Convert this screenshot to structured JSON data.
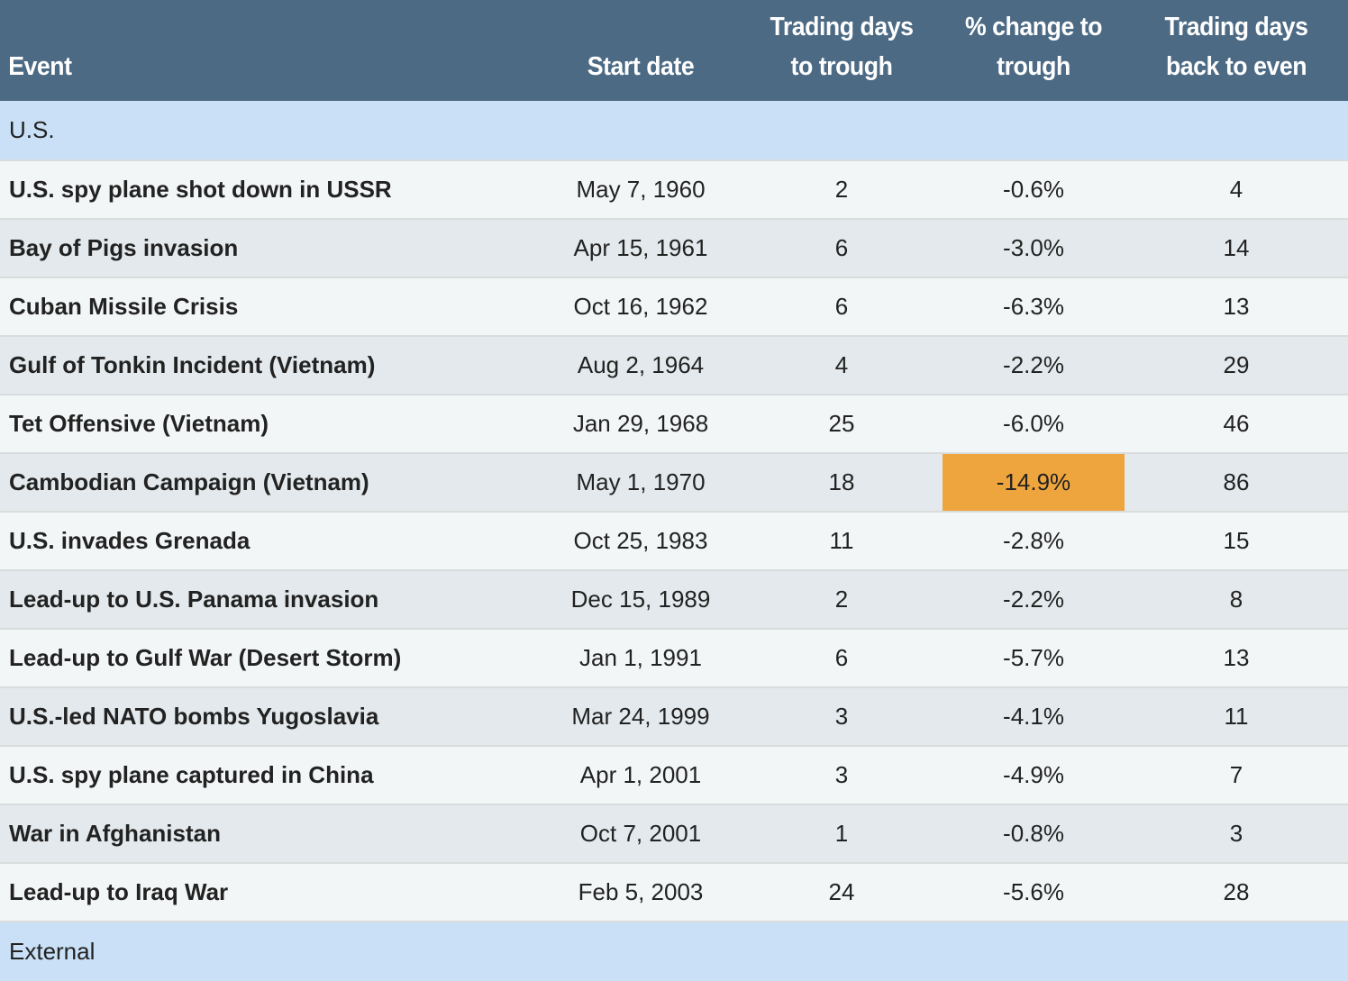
{
  "columns": {
    "event": "Event",
    "start_date": "Start date",
    "days_to_trough_line1": "Trading days",
    "days_to_trough_line2": "to trough",
    "pct_change_line1": "% change to",
    "pct_change_line2": "trough",
    "days_back_line1": "Trading days",
    "days_back_line2": "back to even"
  },
  "sections": [
    {
      "label": "U.S.",
      "rows": [
        {
          "event": "U.S. spy plane shot down in USSR",
          "start_date": "May 7, 1960",
          "days_to_trough": "2",
          "pct_change": "-0.6%",
          "days_back": "4"
        },
        {
          "event": "Bay of Pigs invasion",
          "start_date": "Apr 15, 1961",
          "days_to_trough": "6",
          "pct_change": "-3.0%",
          "days_back": "14"
        },
        {
          "event": "Cuban Missile Crisis",
          "start_date": "Oct 16, 1962",
          "days_to_trough": "6",
          "pct_change": "-6.3%",
          "days_back": "13"
        },
        {
          "event": "Gulf of Tonkin Incident (Vietnam)",
          "start_date": "Aug 2, 1964",
          "days_to_trough": "4",
          "pct_change": "-2.2%",
          "days_back": "29"
        },
        {
          "event": "Tet Offensive (Vietnam)",
          "start_date": "Jan 29, 1968",
          "days_to_trough": "25",
          "pct_change": "-6.0%",
          "days_back": "46"
        },
        {
          "event": "Cambodian Campaign (Vietnam)",
          "start_date": "May 1, 1970",
          "days_to_trough": "18",
          "pct_change": "-14.9%",
          "days_back": "86",
          "highlight": true
        },
        {
          "event": "U.S. invades Grenada",
          "start_date": "Oct 25, 1983",
          "days_to_trough": "11",
          "pct_change": "-2.8%",
          "days_back": "15"
        },
        {
          "event": "Lead-up to U.S. Panama invasion",
          "start_date": "Dec 15, 1989",
          "days_to_trough": "2",
          "pct_change": "-2.2%",
          "days_back": "8"
        },
        {
          "event": "Lead-up to Gulf War (Desert Storm)",
          "start_date": "Jan 1, 1991",
          "days_to_trough": "6",
          "pct_change": "-5.7%",
          "days_back": "13"
        },
        {
          "event": "U.S.-led NATO bombs Yugoslavia",
          "start_date": "Mar 24, 1999",
          "days_to_trough": "3",
          "pct_change": "-4.1%",
          "days_back": "11"
        },
        {
          "event": "U.S. spy plane captured in China",
          "start_date": "Apr 1, 2001",
          "days_to_trough": "3",
          "pct_change": "-4.9%",
          "days_back": "7"
        },
        {
          "event": "War in Afghanistan",
          "start_date": "Oct 7, 2001",
          "days_to_trough": "1",
          "pct_change": "-0.8%",
          "days_back": "3"
        },
        {
          "event": "Lead-up to Iraq War",
          "start_date": "Feb 5, 2003",
          "days_to_trough": "24",
          "pct_change": "-5.6%",
          "days_back": "28"
        }
      ]
    },
    {
      "label": "External",
      "rows": []
    }
  ],
  "colors": {
    "header_bg": "#4c6a84",
    "section_bg": "#c9e0f6",
    "row_bg": "#f3f6f7",
    "row_alt_bg": "#e3e9ec",
    "highlight": "#efa53e"
  }
}
